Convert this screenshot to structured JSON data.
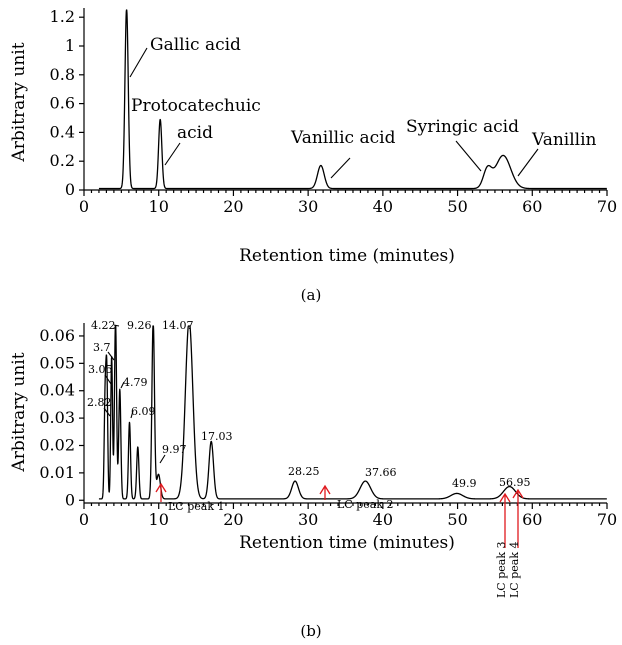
{
  "chart_data": [
    {
      "panel_label": "(a)",
      "type": "line",
      "xlabel": "Retention time (minutes)",
      "ylabel": "Arbitrary unit",
      "xlim": [
        0,
        70
      ],
      "ylim": [
        0,
        1.25
      ],
      "x_ticks": [
        0,
        10,
        20,
        30,
        40,
        50,
        60,
        70
      ],
      "y_ticks": [
        0,
        0.2,
        0.4,
        0.6,
        0.8,
        1,
        1.2
      ],
      "x_tick_labels": [
        "0",
        "10",
        "20",
        "30",
        "40",
        "50",
        "60",
        "70"
      ],
      "y_tick_labels": [
        "0",
        "0.2",
        "0.4",
        "0.6",
        "0.8",
        "1",
        "1.2"
      ],
      "grid": false,
      "series": [
        {
          "baseline": 0.01,
          "peaks": [
            {
              "t": 5.7,
              "h": 1.25,
              "w": 0.22
            },
            {
              "t": 10.2,
              "h": 0.48,
              "w": 0.22
            },
            {
              "t": 31.7,
              "h": 0.16,
              "w": 0.45
            },
            {
              "t": 54.0,
              "h": 0.13,
              "w": 0.55
            },
            {
              "t": 56.1,
              "h": 0.23,
              "w": 1.0
            }
          ]
        }
      ],
      "annotations": [
        {
          "text": "Gallic acid",
          "x": 5.7,
          "y": 1.25
        },
        {
          "text": "Protocatechuic",
          "x": 10.2,
          "y": 0.48
        },
        {
          "text": "acid",
          "x": 10.2,
          "y": 0.48
        },
        {
          "text": "Vanillic acid",
          "x": 31.7,
          "y": 0.16
        },
        {
          "text": "Syringic acid",
          "x": 54.0,
          "y": 0.13
        },
        {
          "text": "Vanillin",
          "x": 56.1,
          "y": 0.23
        }
      ]
    },
    {
      "panel_label": "(b)",
      "type": "line",
      "xlabel": "Retention time (minutes)",
      "ylabel": "Arbitrary unit",
      "xlim": [
        0,
        70
      ],
      "ylim": [
        -0.001,
        0.064
      ],
      "x_ticks": [
        0,
        10,
        20,
        30,
        40,
        50,
        60,
        70
      ],
      "y_ticks": [
        0,
        0.01,
        0.02,
        0.03,
        0.04,
        0.05,
        0.06
      ],
      "x_tick_labels": [
        "0",
        "10",
        "20",
        "30",
        "40",
        "50",
        "60",
        "70"
      ],
      "y_tick_labels": [
        "0",
        "0.01",
        "0.02",
        "0.03",
        "0.04",
        "0.05",
        "0.06"
      ],
      "grid": false,
      "series": [
        {
          "baseline": 0.0005,
          "peaks": [
            {
              "t": 2.82,
              "h": 0.035,
              "w": 0.12
            },
            {
              "t": 3.05,
              "h": 0.045,
              "w": 0.12
            },
            {
              "t": 3.7,
              "h": 0.052,
              "w": 0.12
            },
            {
              "t": 4.22,
              "h": 0.065,
              "w": 0.14
            },
            {
              "t": 4.79,
              "h": 0.04,
              "w": 0.14
            },
            {
              "t": 6.09,
              "h": 0.028,
              "w": 0.14
            },
            {
              "t": 7.2,
              "h": 0.019,
              "w": 0.15
            },
            {
              "t": 9.26,
              "h": 0.065,
              "w": 0.17
            },
            {
              "t": 9.97,
              "h": 0.009,
              "w": 0.25
            },
            {
              "t": 14.07,
              "h": 0.065,
              "w": 0.5
            },
            {
              "t": 17.03,
              "h": 0.021,
              "w": 0.3
            },
            {
              "t": 28.25,
              "h": 0.0065,
              "w": 0.45
            },
            {
              "t": 37.66,
              "h": 0.0065,
              "w": 0.7
            },
            {
              "t": 49.9,
              "h": 0.002,
              "w": 0.8
            },
            {
              "t": 56.95,
              "h": 0.0045,
              "w": 0.8
            }
          ],
          "peak_labels": [
            "2.82",
            "3.05",
            "3.7",
            "4.22",
            "4.79",
            "6.09",
            "9.26",
            "9.97",
            "14.07",
            "17.03",
            "28.25",
            "37.66",
            "49.9",
            "56.95"
          ]
        }
      ],
      "lc_peaks": [
        {
          "label": "LC peak 1",
          "t": 10
        },
        {
          "label": "LC peak 2",
          "t": 32
        },
        {
          "label": "LC peak 3",
          "t": 55.5
        },
        {
          "label": "LC peak 4",
          "t": 57.3
        }
      ]
    }
  ]
}
